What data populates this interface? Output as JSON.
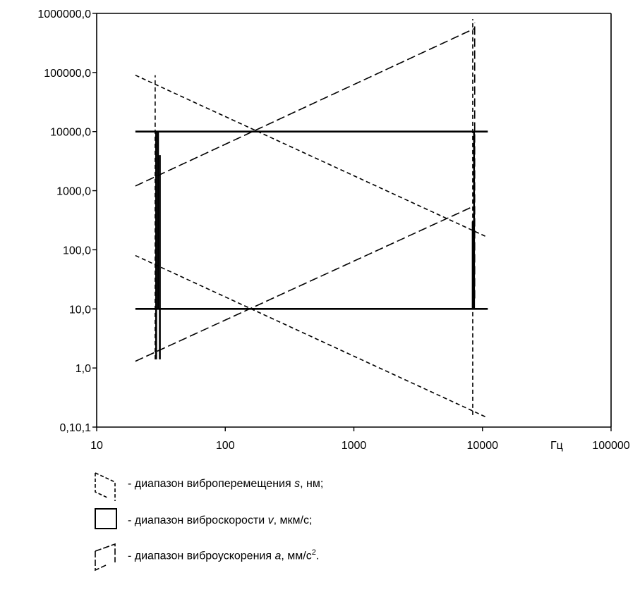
{
  "chart_data": {
    "type": "line",
    "title": "",
    "xlabel": "Гц",
    "ylabel": "",
    "x_scale": "log",
    "y_scale": "log",
    "xlim": [
      10,
      100000
    ],
    "ylim": [
      0.1,
      1000000
    ],
    "x_ticks": [
      {
        "value": 10,
        "label": "10"
      },
      {
        "value": 100,
        "label": "100"
      },
      {
        "value": 1000,
        "label": "1000"
      },
      {
        "value": 10000,
        "label": "10000"
      },
      {
        "value": 100000,
        "label": "100000"
      }
    ],
    "y_ticks": [
      {
        "value": 1000000,
        "label": "1000000,0"
      },
      {
        "value": 100000,
        "label": "100000,0"
      },
      {
        "value": 10000,
        "label": "10000,0"
      },
      {
        "value": 1000,
        "label": "1000,0"
      },
      {
        "value": 100,
        "label": "100,0"
      },
      {
        "value": 10,
        "label": "10,0"
      },
      {
        "value": 1,
        "label": "1,0"
      },
      {
        "value": 0.1,
        "label": "0,10,1"
      }
    ],
    "regions": [
      {
        "name": "displacement",
        "style": "short-dash",
        "lines": [
          {
            "x": [
              20,
              10500
            ],
            "y": [
              90000,
              170
            ]
          },
          {
            "x": [
              20,
              10500
            ],
            "y": [
              80,
              0.15
            ]
          },
          {
            "x": [
              28.5,
              28.5
            ],
            "y": [
              1.4,
              90000
            ]
          },
          {
            "x": [
              8400,
              8400
            ],
            "y": [
              0.16,
              800000
            ]
          }
        ]
      },
      {
        "name": "velocity",
        "style": "solid",
        "lines": [
          {
            "x": [
              20,
              11000
            ],
            "y": [
              10000,
              10000
            ]
          },
          {
            "x": [
              20,
              11000
            ],
            "y": [
              10,
              10
            ]
          },
          {
            "x": [
              30,
              30
            ],
            "y": [
              10,
              10000
            ]
          },
          {
            "x": [
              8600,
              8600
            ],
            "y": [
              10,
              10000
            ]
          },
          {
            "x": [
              29,
              29
            ],
            "y": [
              1.4,
              10000
            ]
          },
          {
            "x": [
              31,
              31
            ],
            "y": [
              1.4,
              4000
            ]
          },
          {
            "x": [
              8400,
              8400
            ],
            "y": [
              10,
              300
            ]
          }
        ]
      },
      {
        "name": "acceleration",
        "style": "long-dash",
        "lines": [
          {
            "x": [
              20,
              8600
            ],
            "y": [
              1200,
              550000
            ]
          },
          {
            "x": [
              20,
              8600
            ],
            "y": [
              1.3,
              550
            ]
          },
          {
            "x": [
              8700,
              8700
            ],
            "y": [
              15,
              700000
            ]
          }
        ]
      }
    ]
  },
  "legend": {
    "items": [
      {
        "id": "displacement",
        "prefix": "- диапазон виброперемещения ",
        "symbol": "s",
        "suffix": ", нм;",
        "sup": ""
      },
      {
        "id": "velocity",
        "prefix": "- диапазон виброскорости ",
        "symbol": "v",
        "suffix": ", мкм/с;",
        "sup": ""
      },
      {
        "id": "acceleration",
        "prefix": "- диапазон виброускорения ",
        "symbol": "a",
        "suffix": ", мм/с",
        "sup": "2"
      }
    ],
    "suffix_tail": "."
  }
}
